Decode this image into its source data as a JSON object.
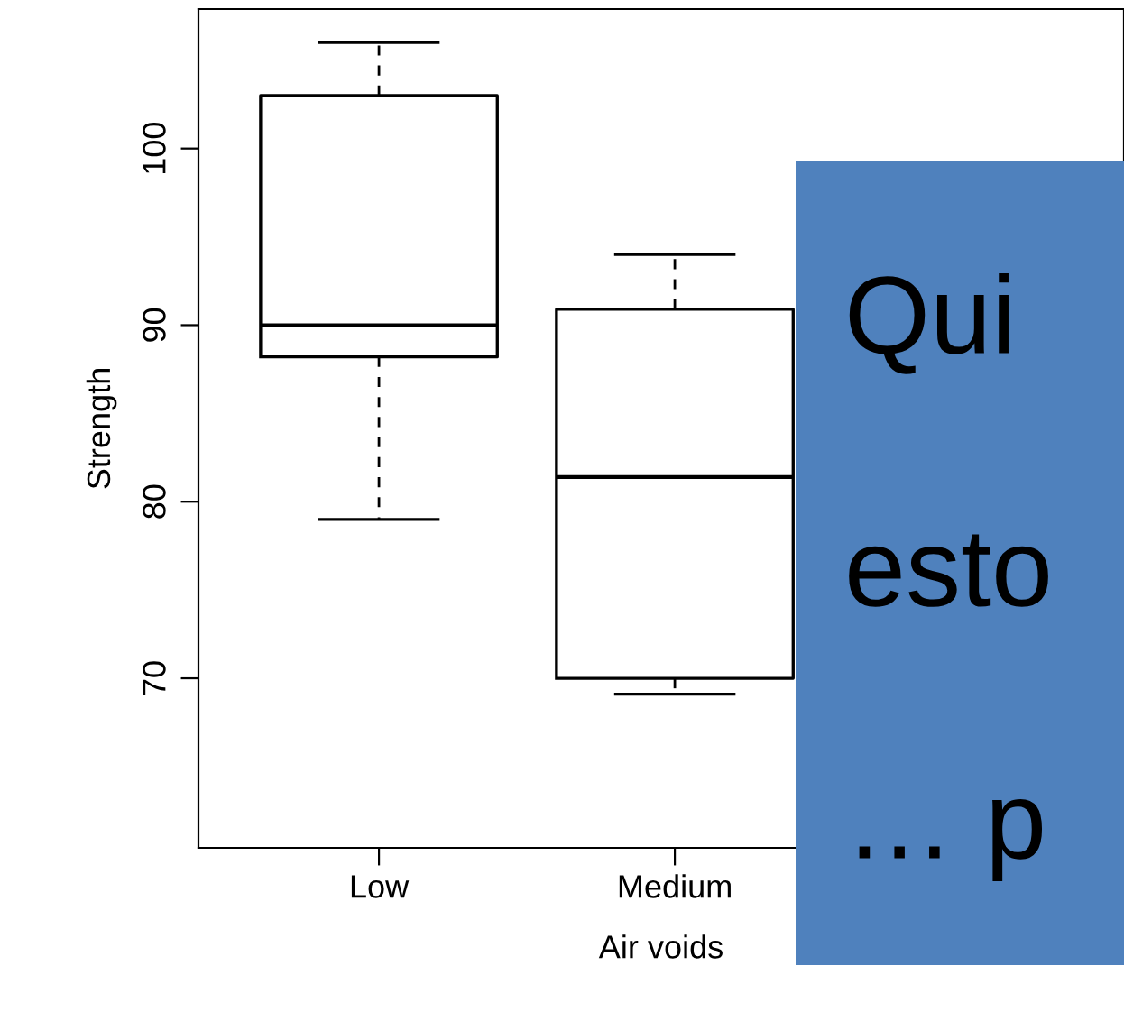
{
  "chart_data": {
    "type": "box",
    "xlabel": "Air voids",
    "ylabel": "Strength",
    "categories": [
      "Low",
      "Medium",
      null
    ],
    "boxes": [
      {
        "low": 79.0,
        "q1": 88.2,
        "median": 90.0,
        "q3": 103.0,
        "high": 106.0
      },
      {
        "low": 69.1,
        "q1": 70.0,
        "median": 81.4,
        "q3": 90.9,
        "high": 94.0
      },
      null
    ],
    "ylim": [
      60.4,
      107.9
    ],
    "yticks": [
      70,
      80,
      90,
      100
    ],
    "grid": false,
    "annotations": [
      "Qui",
      "esto",
      "… p"
    ]
  }
}
